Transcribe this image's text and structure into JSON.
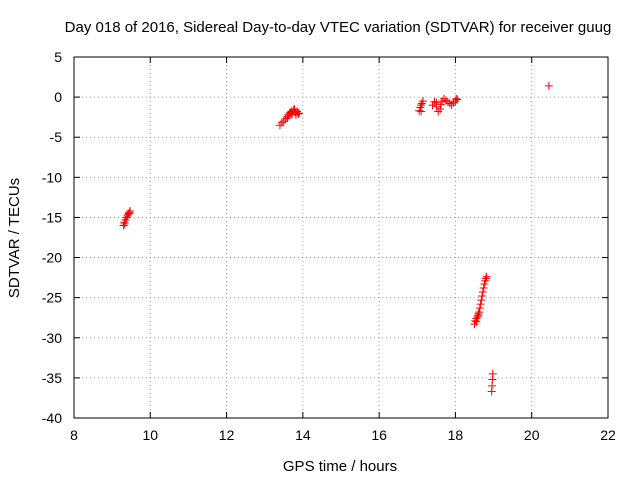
{
  "chart_data": {
    "type": "scatter",
    "title": "Day 018 of 2016, Sidereal Day-to-day VTEC variation (SDTVAR) for receiver guug",
    "xlabel": "GPS time / hours",
    "ylabel": "SDTVAR / TECUs",
    "xlim": [
      8,
      22
    ],
    "ylim": [
      -40,
      5
    ],
    "x_ticks": [
      8,
      10,
      12,
      14,
      16,
      18,
      20,
      22
    ],
    "y_ticks": [
      5,
      0,
      -5,
      -10,
      -15,
      -20,
      -25,
      -30,
      -35,
      -40
    ],
    "x_tick_labels": [
      "8",
      "10",
      "12",
      "14",
      "16",
      "18",
      "20",
      "22"
    ],
    "y_tick_labels": [
      "5",
      "0",
      "-5",
      "-10",
      "-15",
      "-20",
      "-25",
      "-30",
      "-35",
      "-40"
    ],
    "grid": true,
    "marker": "+",
    "marker_color": "#ff0000",
    "series": [
      {
        "points": [
          [
            9.3,
            -16.0
          ],
          [
            9.32,
            -15.6
          ],
          [
            9.35,
            -15.3
          ],
          [
            9.38,
            -15.0
          ],
          [
            9.4,
            -14.8
          ],
          [
            9.42,
            -14.6
          ],
          [
            9.45,
            -14.4
          ],
          [
            9.47,
            -14.2
          ],
          [
            9.33,
            -15.8
          ],
          [
            9.44,
            -14.5
          ],
          [
            13.4,
            -3.5
          ],
          [
            13.45,
            -3.2
          ],
          [
            13.5,
            -3.0
          ],
          [
            13.55,
            -2.7
          ],
          [
            13.6,
            -2.4
          ],
          [
            13.62,
            -2.2
          ],
          [
            13.65,
            -2.0
          ],
          [
            13.68,
            -1.9
          ],
          [
            13.7,
            -1.8
          ],
          [
            13.72,
            -2.1
          ],
          [
            13.75,
            -1.6
          ],
          [
            13.78,
            -1.5
          ],
          [
            13.8,
            -1.9
          ],
          [
            13.82,
            -2.2
          ],
          [
            13.85,
            -1.8
          ],
          [
            13.88,
            -2.1
          ],
          [
            13.9,
            -2.0
          ],
          [
            13.6,
            -2.6
          ],
          [
            17.05,
            -1.7
          ],
          [
            17.08,
            -1.3
          ],
          [
            17.1,
            -1.0
          ],
          [
            17.12,
            -0.8
          ],
          [
            17.15,
            -0.5
          ],
          [
            17.1,
            -1.8
          ],
          [
            17.4,
            -1.0
          ],
          [
            17.45,
            -0.6
          ],
          [
            17.5,
            -1.2
          ],
          [
            17.55,
            -1.8
          ],
          [
            17.6,
            -1.5
          ],
          [
            17.62,
            -0.9
          ],
          [
            17.65,
            -0.5
          ],
          [
            17.7,
            -0.2
          ],
          [
            17.75,
            -0.4
          ],
          [
            17.8,
            -0.6
          ],
          [
            17.85,
            -0.8
          ],
          [
            17.9,
            -1.0
          ],
          [
            17.95,
            -0.7
          ],
          [
            18.0,
            -0.5
          ],
          [
            18.02,
            -0.2
          ],
          [
            18.05,
            -0.3
          ],
          [
            17.5,
            -0.7
          ],
          [
            18.5,
            -28.3
          ],
          [
            18.52,
            -27.9
          ],
          [
            18.55,
            -27.6
          ],
          [
            18.58,
            -27.4
          ],
          [
            18.6,
            -27.2
          ],
          [
            18.62,
            -26.8
          ],
          [
            18.64,
            -26.3
          ],
          [
            18.66,
            -25.8
          ],
          [
            18.68,
            -25.3
          ],
          [
            18.7,
            -24.8
          ],
          [
            18.72,
            -24.3
          ],
          [
            18.74,
            -23.8
          ],
          [
            18.76,
            -23.3
          ],
          [
            18.78,
            -22.9
          ],
          [
            18.8,
            -22.6
          ],
          [
            18.82,
            -22.4
          ],
          [
            18.6,
            -27.0
          ],
          [
            18.55,
            -28.0
          ],
          [
            18.95,
            -36.7
          ],
          [
            18.96,
            -36.0
          ],
          [
            18.97,
            -35.2
          ],
          [
            18.98,
            -34.5
          ],
          [
            20.45,
            1.4
          ]
        ]
      }
    ]
  }
}
